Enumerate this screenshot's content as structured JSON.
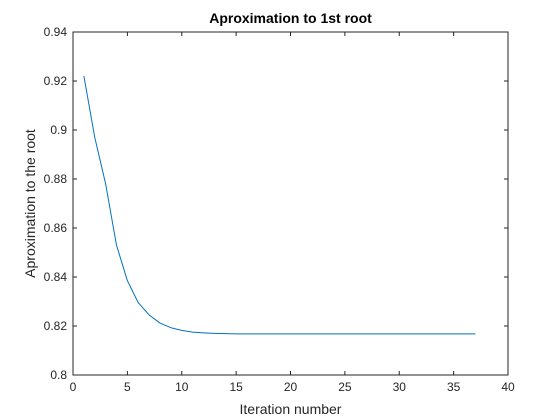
{
  "chart_data": {
    "type": "line",
    "title": "Aproximation to 1st root",
    "xlabel": "Iteration number",
    "ylabel": "Aproximation to the root",
    "xlim": [
      0,
      40
    ],
    "ylim": [
      0.8,
      0.94
    ],
    "xticks": [
      "0",
      "5",
      "10",
      "15",
      "20",
      "25",
      "30",
      "35",
      "40"
    ],
    "yticks": [
      "0.8",
      "0.82",
      "0.84",
      "0.86",
      "0.88",
      "0.9",
      "0.92",
      "0.94"
    ],
    "grid": false,
    "series": [
      {
        "color": "#0072bd",
        "x": [
          1,
          2,
          3,
          4,
          5,
          6,
          7,
          8,
          9,
          10,
          11,
          12,
          13,
          14,
          15,
          16,
          17,
          18,
          19,
          20,
          21,
          22,
          23,
          24,
          25,
          26,
          27,
          28,
          29,
          30,
          31,
          32,
          33,
          34,
          35,
          36,
          37
        ],
        "y": [
          0.922,
          0.897,
          0.878,
          0.853,
          0.8385,
          0.8295,
          0.8245,
          0.8212,
          0.8193,
          0.8182,
          0.8175,
          0.8172,
          0.817,
          0.8169,
          0.8168,
          0.8168,
          0.8168,
          0.8168,
          0.8168,
          0.8168,
          0.8168,
          0.8168,
          0.8168,
          0.8168,
          0.8168,
          0.8168,
          0.8168,
          0.8168,
          0.8168,
          0.8168,
          0.8168,
          0.8168,
          0.8168,
          0.8168,
          0.8168,
          0.8168,
          0.8168
        ]
      }
    ]
  }
}
